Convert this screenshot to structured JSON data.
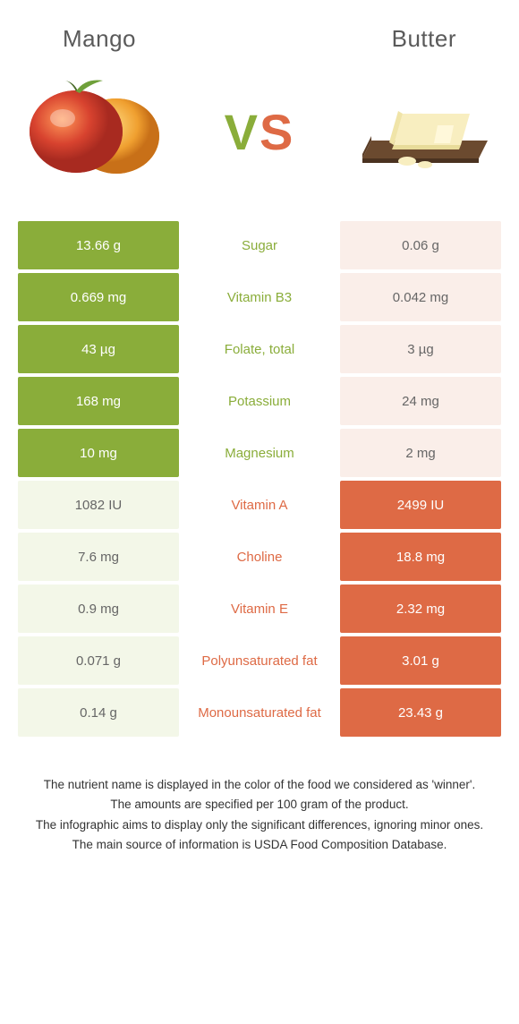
{
  "colors": {
    "green": "#8aad3a",
    "orange": "#de6a45",
    "green_light": "#f3f7e8",
    "orange_light": "#faeee9",
    "title_text": "#5a5a5a"
  },
  "header": {
    "left": "Mango",
    "right": "Butter",
    "vs_v": "V",
    "vs_s": "S"
  },
  "rows": [
    {
      "left": "13.66 g",
      "label": "Sugar",
      "right": "0.06 g",
      "winner": "left"
    },
    {
      "left": "0.669 mg",
      "label": "Vitamin B3",
      "right": "0.042 mg",
      "winner": "left"
    },
    {
      "left": "43 µg",
      "label": "Folate, total",
      "right": "3 µg",
      "winner": "left"
    },
    {
      "left": "168 mg",
      "label": "Potassium",
      "right": "24 mg",
      "winner": "left"
    },
    {
      "left": "10 mg",
      "label": "Magnesium",
      "right": "2 mg",
      "winner": "left"
    },
    {
      "left": "1082 IU",
      "label": "Vitamin A",
      "right": "2499 IU",
      "winner": "right"
    },
    {
      "left": "7.6 mg",
      "label": "Choline",
      "right": "18.8 mg",
      "winner": "right"
    },
    {
      "left": "0.9 mg",
      "label": "Vitamin E",
      "right": "2.32 mg",
      "winner": "right"
    },
    {
      "left": "0.071 g",
      "label": "Polyunsaturated fat",
      "right": "3.01 g",
      "winner": "right"
    },
    {
      "left": "0.14 g",
      "label": "Monounsaturated fat",
      "right": "23.43 g",
      "winner": "right"
    }
  ],
  "footnotes": [
    "The nutrient name is displayed in the color of the food we considered as 'winner'.",
    "The amounts are specified per 100 gram of the product.",
    "The infographic aims to display only the significant differences, ignoring minor ones.",
    "The main source of information is USDA Food Composition Database."
  ]
}
